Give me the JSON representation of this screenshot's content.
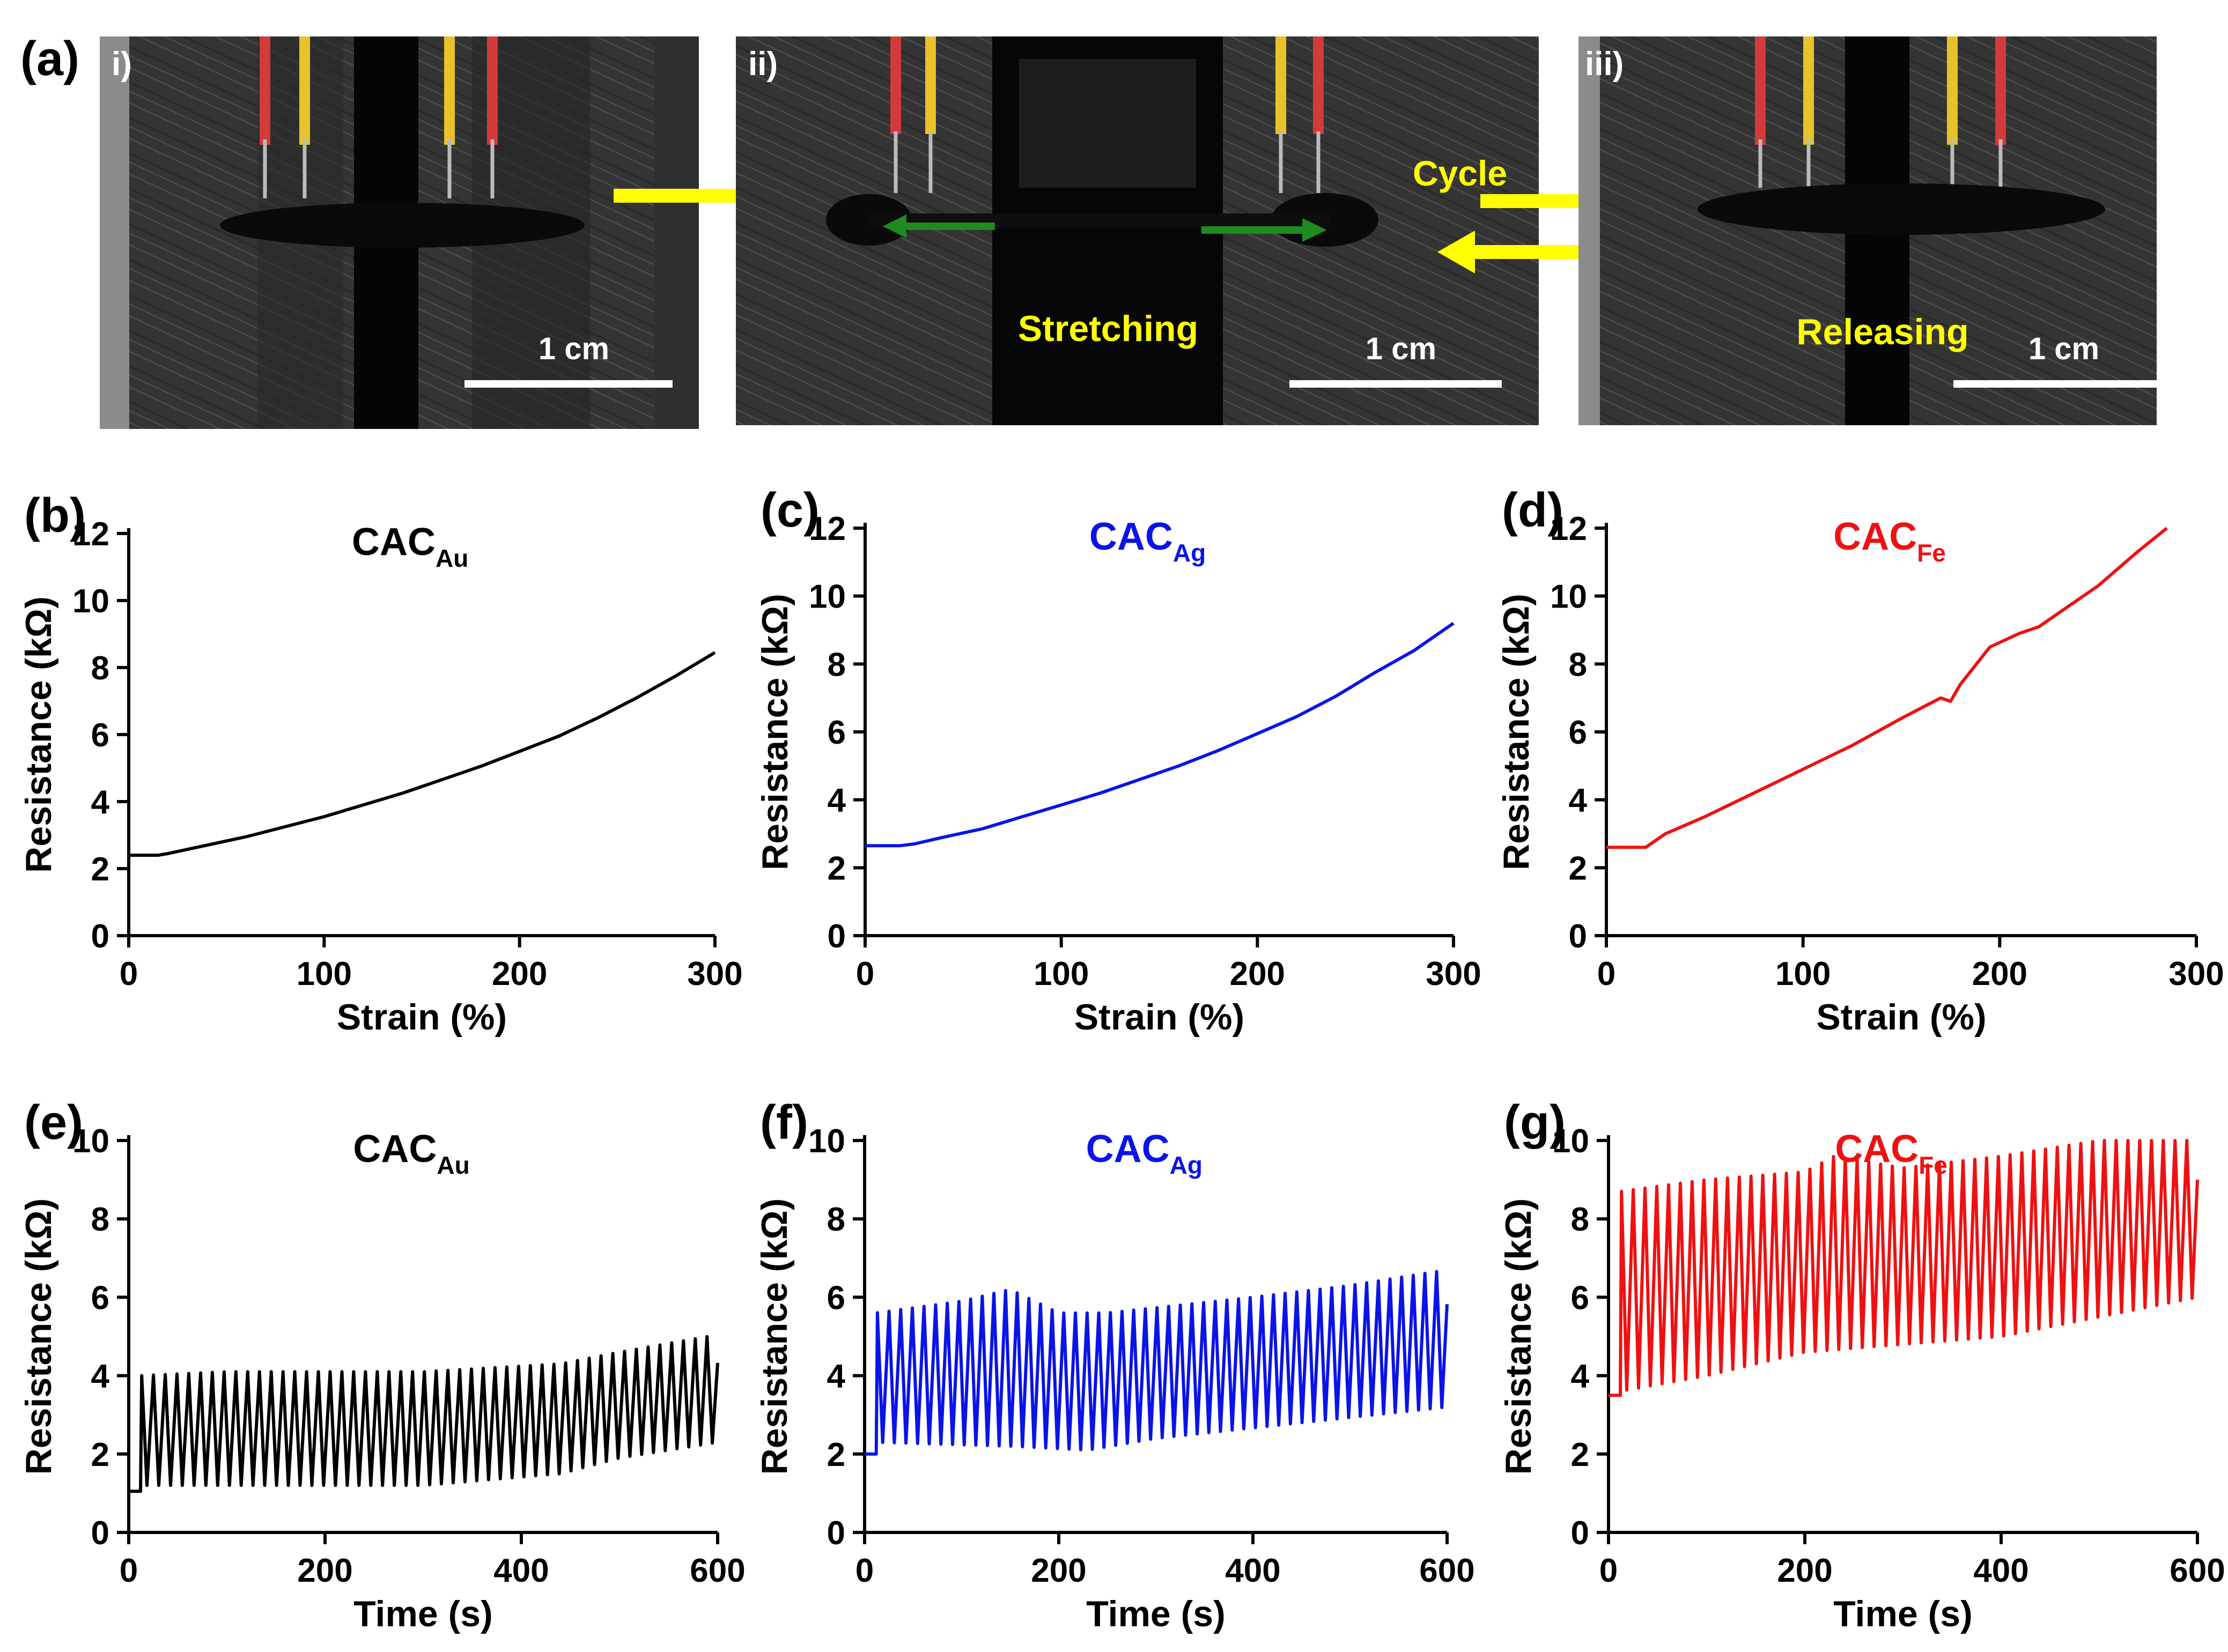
{
  "figure": {
    "panel_a": {
      "label": "(a)",
      "photos": [
        {
          "label": "i)",
          "scale_bar": "1 cm"
        },
        {
          "label": "ii)",
          "scale_bar": "1 cm",
          "caption": "Stretching"
        },
        {
          "label": "iii)",
          "scale_bar": "1 cm",
          "caption": "Releasing"
        }
      ],
      "cycle_label": "Cycle"
    }
  },
  "colors": {
    "au": "#000000",
    "ag": "#0a14e6",
    "fe": "#ee1111",
    "annotation_yellow": "#ffff00",
    "arrow_green": "#1f8a1f"
  },
  "chart_data": [
    {
      "id": "b",
      "panel_label": "(b)",
      "type": "line",
      "title_main": "CAC",
      "title_sub": "Au",
      "color": "#000000",
      "xlabel": "Strain (%)",
      "ylabel": "Resistance (kΩ)",
      "xlim": [
        0,
        300
      ],
      "ylim": [
        0,
        12
      ],
      "xticks": [
        "0",
        "100",
        "200",
        "300"
      ],
      "yticks": [
        "0",
        "2",
        "4",
        "6",
        "8",
        "10",
        "12"
      ],
      "series": [
        {
          "name": "CACAu",
          "x": [
            0,
            10,
            15,
            20,
            40,
            60,
            80,
            100,
            120,
            140,
            160,
            180,
            200,
            220,
            240,
            260,
            280,
            300
          ],
          "y": [
            2.4,
            2.4,
            2.4,
            2.45,
            2.7,
            2.95,
            3.25,
            3.55,
            3.9,
            4.25,
            4.65,
            5.05,
            5.5,
            5.95,
            6.5,
            7.1,
            7.75,
            8.45
          ]
        }
      ]
    },
    {
      "id": "c",
      "panel_label": "(c)",
      "type": "line",
      "title_main": "CAC",
      "title_sub": "Ag",
      "color": "#0a14e6",
      "xlabel": "Strain (%)",
      "ylabel": "Resistance (kΩ)",
      "xlim": [
        0,
        300
      ],
      "ylim": [
        0,
        12
      ],
      "xticks": [
        "0",
        "100",
        "200",
        "300"
      ],
      "yticks": [
        "0",
        "2",
        "4",
        "6",
        "8",
        "10",
        "12"
      ],
      "series": [
        {
          "name": "CACAg",
          "x": [
            0,
            10,
            18,
            25,
            40,
            60,
            80,
            100,
            120,
            140,
            160,
            180,
            200,
            220,
            240,
            260,
            280,
            285,
            300
          ],
          "y": [
            2.65,
            2.65,
            2.65,
            2.7,
            2.9,
            3.15,
            3.5,
            3.85,
            4.2,
            4.6,
            5.0,
            5.45,
            5.95,
            6.45,
            7.05,
            7.75,
            8.4,
            8.6,
            9.2
          ]
        }
      ]
    },
    {
      "id": "d",
      "panel_label": "(d)",
      "type": "line",
      "title_main": "CAC",
      "title_sub": "Fe",
      "color": "#ee1111",
      "xlabel": "Strain (%)",
      "ylabel": "Resistance (kΩ)",
      "xlim": [
        0,
        300
      ],
      "ylim": [
        0,
        12
      ],
      "xticks": [
        "0",
        "100",
        "200",
        "300"
      ],
      "yticks": [
        "0",
        "2",
        "4",
        "6",
        "8",
        "10",
        "12"
      ],
      "series": [
        {
          "name": "CACFe",
          "x": [
            0,
            10,
            20,
            30,
            50,
            75,
            100,
            125,
            150,
            170,
            175,
            180,
            195,
            210,
            220,
            230,
            250,
            270,
            285
          ],
          "y": [
            2.6,
            2.6,
            2.6,
            3.0,
            3.5,
            4.2,
            4.9,
            5.6,
            6.4,
            7.0,
            6.9,
            7.4,
            8.5,
            8.9,
            9.1,
            9.5,
            10.3,
            11.3,
            12.0
          ]
        }
      ]
    },
    {
      "id": "e",
      "panel_label": "(e)",
      "type": "line",
      "title_main": "CAC",
      "title_sub": "Au",
      "color": "#000000",
      "xlabel": "Time (s)",
      "ylabel": "Resistance (kΩ)",
      "xlim": [
        0,
        600
      ],
      "ylim": [
        0,
        10
      ],
      "xticks": [
        "0",
        "200",
        "400",
        "600"
      ],
      "yticks": [
        "0",
        "2",
        "4",
        "6",
        "8",
        "10"
      ],
      "series": [
        {
          "name": "CACAu cyclic",
          "start": 0,
          "end": 600,
          "baseline": 1.05,
          "cycle_start": 12,
          "period": 12,
          "peaks": [
            [
              12,
              4.0
            ],
            [
              100,
              4.1
            ],
            [
              300,
              4.1
            ],
            [
              440,
              4.3
            ],
            [
              500,
              4.6
            ],
            [
              590,
              5.0
            ],
            [
              600,
              5.0
            ]
          ],
          "valleys": [
            [
              12,
              1.2
            ],
            [
              300,
              1.2
            ],
            [
              440,
              1.5
            ],
            [
              500,
              1.9
            ],
            [
              600,
              2.3
            ]
          ]
        }
      ]
    },
    {
      "id": "f",
      "panel_label": "(f)",
      "type": "line",
      "title_main": "CAC",
      "title_sub": "Ag",
      "color": "#0a14e6",
      "xlabel": "Time (s)",
      "ylabel": "Resistance (kΩ)",
      "xlim": [
        0,
        600
      ],
      "ylim": [
        0,
        10
      ],
      "xticks": [
        "0",
        "200",
        "400",
        "600"
      ],
      "yticks": [
        "0",
        "2",
        "4",
        "6",
        "8",
        "10"
      ],
      "series": [
        {
          "name": "CACAg cyclic",
          "start": 0,
          "end": 600,
          "baseline": 2.0,
          "cycle_start": 12,
          "period": 12,
          "peaks": [
            [
              12,
              5.6
            ],
            [
              100,
              5.9
            ],
            [
              150,
              6.2
            ],
            [
              200,
              5.6
            ],
            [
              250,
              5.6
            ],
            [
              400,
              6.0
            ],
            [
              500,
              6.3
            ],
            [
              600,
              6.7
            ]
          ],
          "valleys": [
            [
              12,
              2.3
            ],
            [
              150,
              2.2
            ],
            [
              230,
              2.1
            ],
            [
              300,
              2.4
            ],
            [
              450,
              2.8
            ],
            [
              600,
              3.2
            ]
          ]
        }
      ]
    },
    {
      "id": "g",
      "panel_label": "(g)",
      "type": "line",
      "title_main": "CAC",
      "title_sub": "Fe",
      "color": "#ee1111",
      "xlabel": "Time (s)",
      "ylabel": "Resistance (kΩ)",
      "xlim": [
        0,
        600
      ],
      "ylim": [
        0,
        10
      ],
      "xticks": [
        "0",
        "200",
        "400",
        "600"
      ],
      "yticks": [
        "0",
        "2",
        "4",
        "6",
        "8",
        "10"
      ],
      "series": [
        {
          "name": "CACFe cyclic",
          "start": 0,
          "end": 600,
          "baseline": 3.5,
          "cycle_start": 12,
          "period": 12,
          "peaks": [
            [
              12,
              8.7
            ],
            [
              100,
              9.0
            ],
            [
              200,
              9.2
            ],
            [
              230,
              9.6
            ],
            [
              300,
              9.3
            ],
            [
              400,
              9.6
            ],
            [
              500,
              10.0
            ],
            [
              600,
              10.0
            ]
          ],
          "valleys": [
            [
              12,
              3.6
            ],
            [
              100,
              4.0
            ],
            [
              200,
              4.6
            ],
            [
              300,
              4.8
            ],
            [
              400,
              5.0
            ],
            [
              500,
              5.5
            ],
            [
              600,
              6.0
            ]
          ]
        }
      ]
    }
  ]
}
